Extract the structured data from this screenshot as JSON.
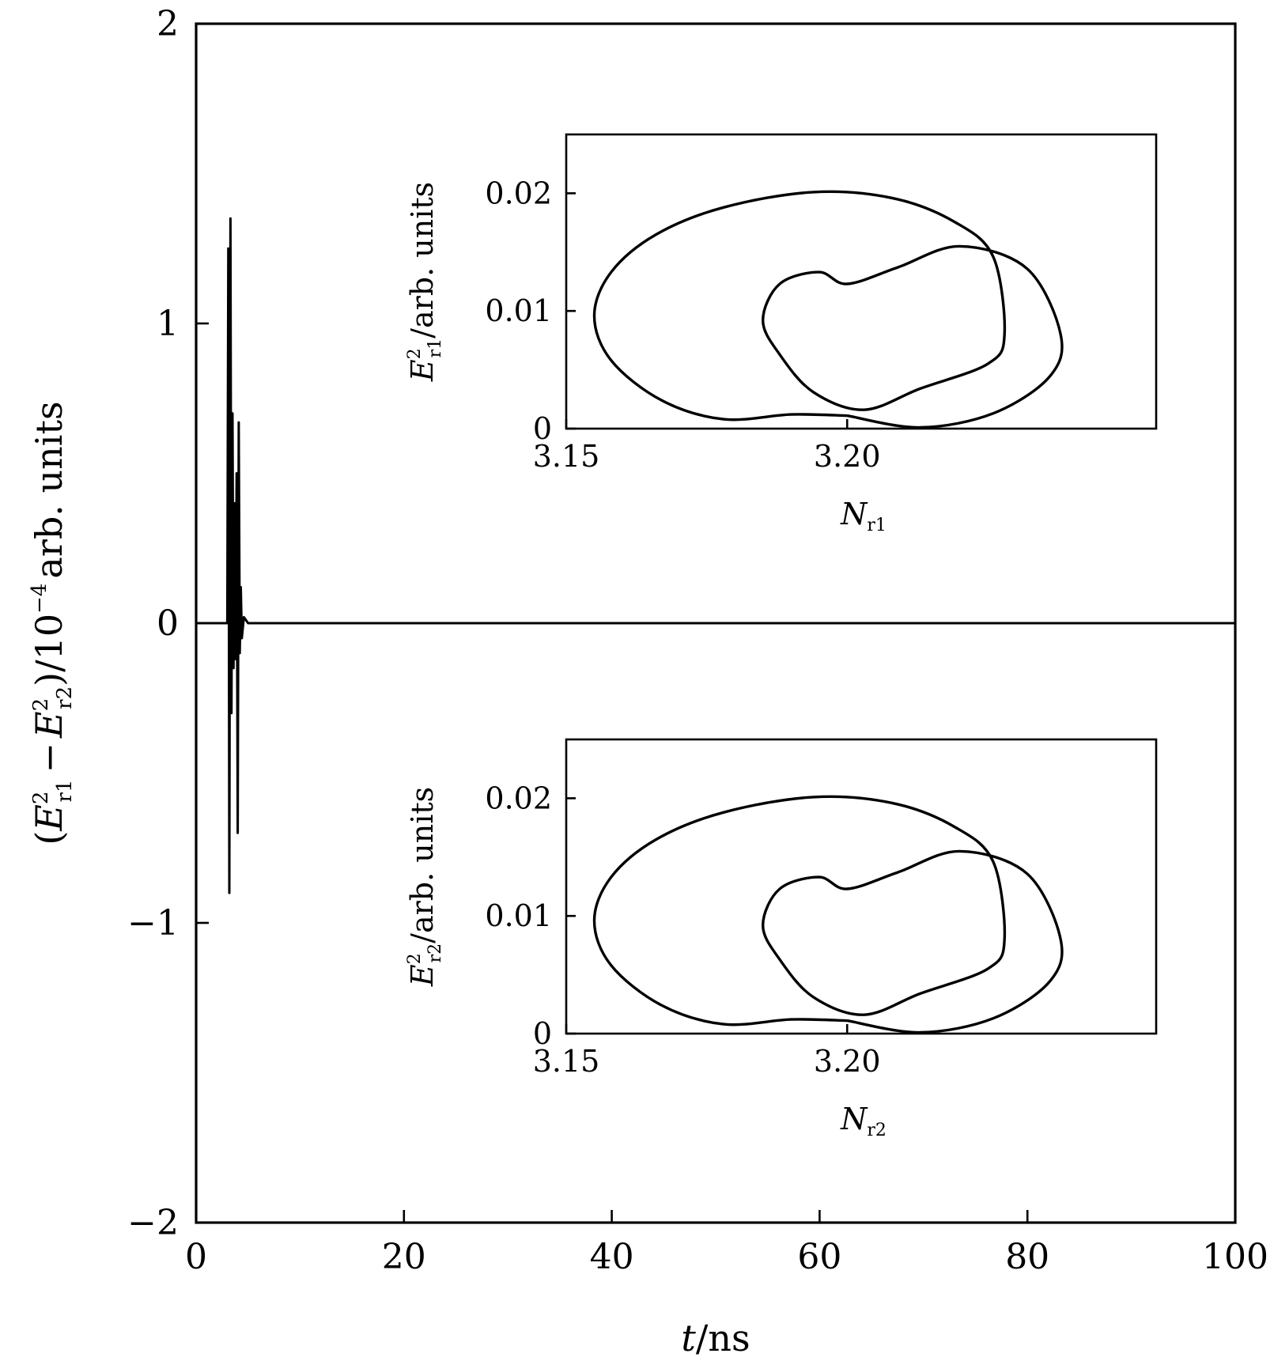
{
  "chart_data": [
    {
      "type": "line",
      "xlabel": "t/ns",
      "ylabel": "(E²r1 − E²r2)/10⁻⁴arb. units",
      "xlim": [
        0,
        100
      ],
      "ylim": [
        -2,
        2
      ],
      "xticks": [
        "0",
        "20",
        "40",
        "60",
        "80",
        "100"
      ],
      "yticks": [
        "−2",
        "−1",
        "0",
        "1",
        "2"
      ],
      "grid": false,
      "series": [
        {
          "x": [
            0,
            3.0,
            3.1,
            3.2,
            3.3,
            3.4,
            3.5,
            3.6,
            3.7,
            3.8,
            3.9,
            4.0,
            4.1,
            4.2,
            4.3,
            4.4,
            4.6,
            5.0,
            100
          ],
          "y": [
            0,
            0,
            1.25,
            -0.9,
            1.35,
            -0.3,
            0.7,
            -0.15,
            0.4,
            -0.12,
            0.5,
            -0.7,
            0.67,
            -0.1,
            0.12,
            -0.05,
            0.02,
            0,
            0
          ]
        }
      ]
    },
    {
      "type": "line",
      "inset": "upper",
      "xlabel": "Nr1",
      "ylabel": "E²r1/arb. units",
      "xlim": [
        3.15,
        3.255
      ],
      "ylim": [
        0,
        0.025
      ],
      "xticks": [
        "3.15",
        "3.20"
      ],
      "yticks": [
        "0",
        "0.01",
        "0.02"
      ],
      "series": [
        {
          "x": [
            3.2,
            3.19,
            3.178,
            3.167,
            3.158,
            3.155,
            3.158,
            3.166,
            3.178,
            3.194,
            3.208,
            3.219,
            3.226,
            3.228,
            3.225,
            3.213,
            3.203,
            3.194,
            3.188,
            3.185,
            3.188,
            3.195,
            3.2,
            3.209,
            3.22,
            3.232,
            3.238,
            3.236,
            3.226,
            3.213,
            3.2
          ],
          "y": [
            0.0011,
            0.0012,
            0.0008,
            0.0024,
            0.0058,
            0.0096,
            0.0133,
            0.0165,
            0.0188,
            0.0201,
            0.0196,
            0.0176,
            0.0146,
            0.008,
            0.0055,
            0.0034,
            0.0016,
            0.0031,
            0.0063,
            0.0092,
            0.0123,
            0.0133,
            0.0123,
            0.0137,
            0.0155,
            0.0136,
            0.008,
            0.0044,
            0.0013,
            0.0001,
            0.0011
          ]
        }
      ]
    },
    {
      "type": "line",
      "inset": "lower",
      "xlabel": "Nr2",
      "ylabel": "E²r2/arb. units",
      "xlim": [
        3.15,
        3.255
      ],
      "ylim": [
        0,
        0.025
      ],
      "xticks": [
        "3.15",
        "3.20"
      ],
      "yticks": [
        "0",
        "0.01",
        "0.02"
      ],
      "series": [
        {
          "x": [
            3.2,
            3.19,
            3.178,
            3.167,
            3.158,
            3.155,
            3.158,
            3.166,
            3.178,
            3.194,
            3.208,
            3.219,
            3.226,
            3.228,
            3.225,
            3.213,
            3.203,
            3.194,
            3.188,
            3.185,
            3.188,
            3.195,
            3.2,
            3.209,
            3.22,
            3.232,
            3.238,
            3.236,
            3.226,
            3.213,
            3.2
          ],
          "y": [
            0.0011,
            0.0012,
            0.0008,
            0.0024,
            0.0058,
            0.0096,
            0.0133,
            0.0165,
            0.0188,
            0.0201,
            0.0196,
            0.0176,
            0.0146,
            0.008,
            0.0055,
            0.0034,
            0.0016,
            0.0031,
            0.0063,
            0.0092,
            0.0123,
            0.0133,
            0.0123,
            0.0137,
            0.0155,
            0.0136,
            0.008,
            0.0044,
            0.0013,
            0.0001,
            0.0011
          ]
        }
      ]
    }
  ],
  "labels": {
    "main_x_base": "t",
    "main_x_unit": "/ns",
    "main_y_open": "(",
    "main_y_E": "E",
    "main_y_sup": "2",
    "main_y_sub1": "r1",
    "main_y_minus": "−",
    "main_y_sub2": "r2",
    "main_y_close": ")/10",
    "main_y_exp": "−4",
    "main_y_unit": "arb. units",
    "inset1_x_base": "N",
    "inset1_x_sub": "r1",
    "inset1_y_E": "E",
    "inset1_y_sup": "2",
    "inset1_y_sub": "r1",
    "inset1_y_unit": "/arb. units",
    "inset2_x_base": "N",
    "inset2_x_sub": "r2",
    "inset2_y_E": "E",
    "inset2_y_sup": "2",
    "inset2_y_sub": "r2",
    "inset2_y_unit": "/arb. units"
  }
}
